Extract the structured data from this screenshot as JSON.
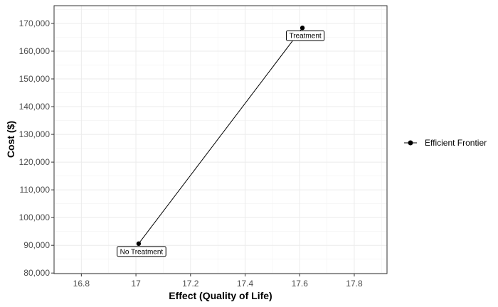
{
  "chart_data": {
    "type": "scatter",
    "xlabel": "Effect (Quality of Life)",
    "ylabel": "Cost ($)",
    "xlim": [
      16.7,
      17.92
    ],
    "ylim": [
      79800,
      176400
    ],
    "x_ticks": [
      16.8,
      17.0,
      17.2,
      17.4,
      17.6,
      17.8
    ],
    "x_tick_labels": [
      "16.8",
      "17",
      "17.2",
      "17.4",
      "17.6",
      "17.8"
    ],
    "y_ticks": [
      80000,
      90000,
      100000,
      110000,
      120000,
      130000,
      140000,
      150000,
      160000,
      170000
    ],
    "y_tick_labels": [
      "80,000",
      "90,000",
      "100,000",
      "110,000",
      "120,000",
      "130,000",
      "140,000",
      "150,000",
      "160,000",
      "170,000"
    ],
    "grid": true,
    "legend_position": "right",
    "series": [
      {
        "name": "Efficient Frontier",
        "color": "#000000",
        "points": [
          {
            "x": 17.01,
            "y": 90600,
            "label": "No Treatment"
          },
          {
            "x": 17.61,
            "y": 168400,
            "label": "Treatment"
          }
        ]
      }
    ]
  }
}
